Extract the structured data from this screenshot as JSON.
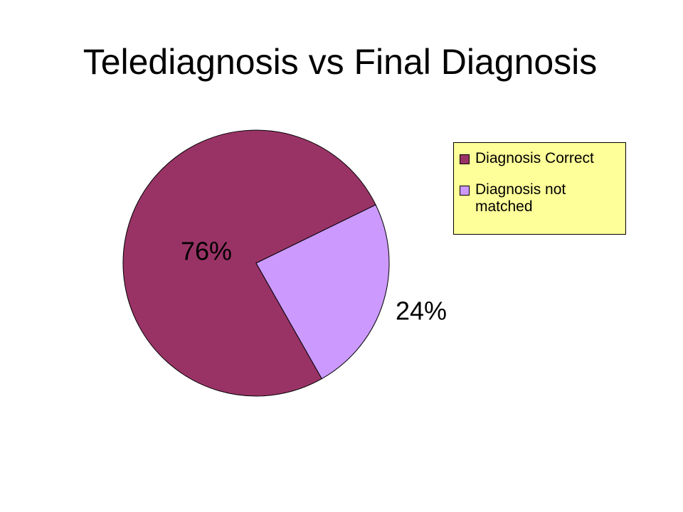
{
  "chart_data": {
    "type": "pie",
    "title": "Telediagnosis vs Final Diagnosis",
    "categories": [
      "Diagnosis Correct",
      "Diagnosis not matched"
    ],
    "values": [
      76,
      24
    ],
    "value_labels": [
      "76%",
      "24%"
    ],
    "colors": [
      "#993366",
      "#CC99FF"
    ],
    "legend": "right"
  }
}
